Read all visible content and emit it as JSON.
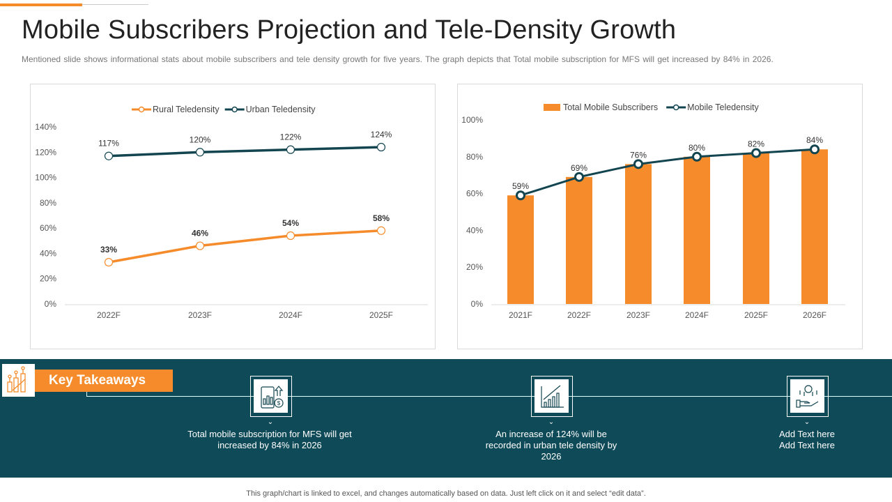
{
  "header": {
    "title": "Mobile Subscribers Projection and Tele-Density Growth",
    "subtitle": "Mentioned slide shows informational stats about mobile subscribers and tele density growth for five  years. The graph depicts that Total mobile subscription for MFS will get increased by 84% in 2026."
  },
  "colors": {
    "orange": "#F58B2A",
    "teal": "#0F4A58",
    "dark_line": "#124550"
  },
  "chart_data": [
    {
      "type": "line",
      "categories": [
        "2022F",
        "2023F",
        "2024F",
        "2025F"
      ],
      "ylim": [
        0,
        140
      ],
      "yticks": [
        "0%",
        "20%",
        "40%",
        "60%",
        "80%",
        "100%",
        "120%",
        "140%"
      ],
      "grid": false,
      "legend": "top",
      "series": [
        {
          "name": "Rural Teledensity",
          "values": [
            33,
            46,
            54,
            58
          ],
          "labels": [
            "33%",
            "46%",
            "54%",
            "58%"
          ],
          "color": "#F58B2A"
        },
        {
          "name": "Urban Teledensity",
          "values": [
            117,
            120,
            122,
            124
          ],
          "labels": [
            "117%",
            "120%",
            "122%",
            "124%"
          ],
          "color": "#124550"
        }
      ]
    },
    {
      "type": "bar+line",
      "categories": [
        "2021F",
        "2022F",
        "2023F",
        "2024F",
        "2025F",
        "2026F"
      ],
      "ylim": [
        0,
        100
      ],
      "yticks": [
        "0%",
        "20%",
        "40%",
        "60%",
        "80%",
        "100%"
      ],
      "grid": false,
      "legend": "top",
      "series": [
        {
          "name": "Total Mobile Subscribers",
          "type": "bar",
          "values": [
            59,
            69,
            76,
            80,
            82,
            84
          ],
          "color": "#F58B2A"
        },
        {
          "name": "Mobile Teledensity",
          "type": "line",
          "values": [
            59,
            69,
            76,
            80,
            82,
            84
          ],
          "labels": [
            "59%",
            "69%",
            "76%",
            "80%",
            "82%",
            "84%"
          ],
          "color": "#124550"
        }
      ]
    }
  ],
  "takeaways": {
    "label": "Key Takeaways",
    "items": [
      {
        "icon": "mobile-chart-dollar-icon",
        "text": "Total mobile subscription for MFS will get increased by 84% in 2026"
      },
      {
        "icon": "growth-chart-icon",
        "text": "An increase of 124% will be recorded in urban tele density by 2026"
      },
      {
        "icon": "hand-coin-icon",
        "text": "Add Text here Add Text here"
      }
    ]
  },
  "footer": "This graph/chart is linked to excel, and changes automatically based on data. Just left click on it and select “edit data”."
}
